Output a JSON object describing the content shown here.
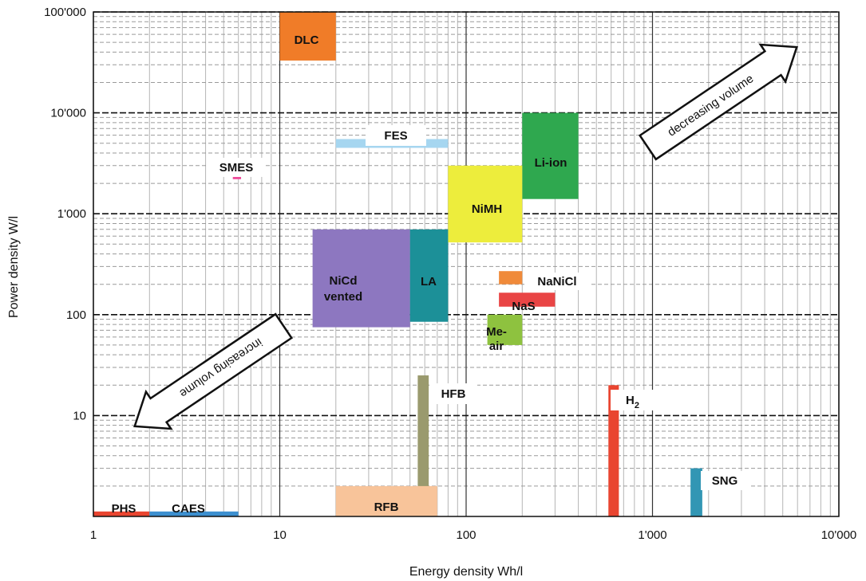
{
  "chart_data": {
    "type": "area",
    "xlabel": "Energy density Wh/l",
    "ylabel": "Power density  W/l",
    "xscale": "log",
    "yscale": "log",
    "xlim": [
      1,
      10000
    ],
    "ylim": [
      1,
      100000
    ],
    "xticks": [
      {
        "value": 1,
        "label": "1"
      },
      {
        "value": 10,
        "label": "10"
      },
      {
        "value": 100,
        "label": "100"
      },
      {
        "value": 1000,
        "label": "1'000"
      },
      {
        "value": 10000,
        "label": "10'000"
      }
    ],
    "yticks": [
      {
        "value": 10,
        "label": "10"
      },
      {
        "value": 100,
        "label": "100"
      },
      {
        "value": 1000,
        "label": "1'000"
      },
      {
        "value": 10000,
        "label": "10'000"
      },
      {
        "value": 100000,
        "label": "100'000"
      }
    ],
    "grid": true,
    "regions": [
      {
        "name": "DLC",
        "x": [
          10,
          20
        ],
        "y": [
          33000,
          100000
        ],
        "color": "#f07c28"
      },
      {
        "name": "FES",
        "x": [
          20,
          80
        ],
        "y": [
          4500,
          5500
        ],
        "color": "#a6d6f0"
      },
      {
        "name": "SMES",
        "x": [
          5.6,
          6.2
        ],
        "y": [
          2200,
          2600
        ],
        "color": "#ee4d9b"
      },
      {
        "name": "Li-ion",
        "x": [
          200,
          400
        ],
        "y": [
          1400,
          10000
        ],
        "color": "#2fa84f"
      },
      {
        "name": "NiMH",
        "x": [
          80,
          200
        ],
        "y": [
          520,
          3000
        ],
        "color": "#eded3c"
      },
      {
        "name": "NiCd",
        "sublabel": "vented",
        "x": [
          15,
          50
        ],
        "y": [
          75,
          700
        ],
        "color": "#8d77c0"
      },
      {
        "name": "LA",
        "x": [
          50,
          80
        ],
        "y": [
          85,
          700
        ],
        "color": "#1c9098"
      },
      {
        "name": "NaNiCl",
        "x": [
          150,
          200
        ],
        "y": [
          200,
          270
        ],
        "color": "#f08a3a"
      },
      {
        "name": "NaS",
        "x": [
          150,
          300
        ],
        "y": [
          120,
          165
        ],
        "color": "#e94545"
      },
      {
        "name": "Me-",
        "sublabel": "air",
        "x": [
          130,
          200
        ],
        "y": [
          50,
          100
        ],
        "color": "#8ec23f"
      },
      {
        "name": "HFB",
        "x": [
          55,
          63
        ],
        "y": [
          1,
          25
        ],
        "color": "#9a9a6e"
      },
      {
        "name": "H2",
        "x": [
          580,
          660
        ],
        "y": [
          1,
          20
        ],
        "color": "#e94530"
      },
      {
        "name": "SNG",
        "x": [
          1600,
          1850
        ],
        "y": [
          1,
          3
        ],
        "color": "#3296b4"
      },
      {
        "name": "RFB",
        "x": [
          20,
          70
        ],
        "y": [
          1,
          2
        ],
        "color": "#f8c49a"
      },
      {
        "name": "PHS",
        "x": [
          1,
          2
        ],
        "y": [
          1,
          1.12
        ],
        "color": "#e94530"
      },
      {
        "name": "CAES",
        "x": [
          2,
          6
        ],
        "y": [
          1,
          1.12
        ],
        "color": "#3c8fcf"
      }
    ],
    "annotations": [
      {
        "text": "decreasing volume",
        "direction": "up-right"
      },
      {
        "text": "increasing volume",
        "direction": "down-left"
      }
    ]
  }
}
